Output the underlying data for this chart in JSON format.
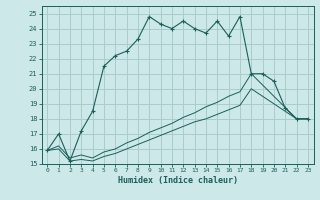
{
  "xlabel": "Humidex (Indice chaleur)",
  "background_color": "#cce8e8",
  "grid_color": "#aacccc",
  "line_color": "#1a5f5a",
  "xlim": [
    -0.5,
    23.5
  ],
  "ylim": [
    15,
    25.5
  ],
  "yticks": [
    15,
    16,
    17,
    18,
    19,
    20,
    21,
    22,
    23,
    24,
    25
  ],
  "xticks": [
    0,
    1,
    2,
    3,
    4,
    5,
    6,
    7,
    8,
    9,
    10,
    11,
    12,
    13,
    14,
    15,
    16,
    17,
    18,
    19,
    20,
    21,
    22,
    23
  ],
  "line1_x": [
    0,
    1,
    2,
    3,
    4,
    5,
    6,
    7,
    8,
    9,
    10,
    11,
    12,
    13,
    14,
    15,
    16,
    17,
    18,
    19,
    20,
    21,
    22,
    23
  ],
  "line1_y": [
    15.9,
    17.0,
    15.2,
    17.2,
    18.5,
    21.5,
    22.2,
    22.5,
    23.3,
    24.8,
    24.3,
    24.0,
    24.5,
    24.0,
    23.7,
    24.5,
    23.5,
    24.8,
    21.0,
    21.0,
    20.5,
    18.7,
    18.0,
    18.0
  ],
  "line2_x": [
    0,
    1,
    2,
    3,
    4,
    5,
    6,
    7,
    8,
    9,
    10,
    11,
    12,
    13,
    14,
    15,
    16,
    17,
    18,
    22,
    23
  ],
  "line2_y": [
    15.9,
    16.0,
    15.2,
    15.3,
    15.2,
    15.5,
    15.7,
    16.0,
    16.3,
    16.6,
    16.9,
    17.2,
    17.5,
    17.8,
    18.0,
    18.3,
    18.6,
    18.9,
    20.0,
    18.0,
    18.0
  ],
  "line3_x": [
    0,
    1,
    2,
    3,
    4,
    5,
    6,
    7,
    8,
    9,
    10,
    11,
    12,
    13,
    14,
    15,
    16,
    17,
    18,
    22,
    23
  ],
  "line3_y": [
    15.9,
    16.2,
    15.4,
    15.6,
    15.4,
    15.8,
    16.0,
    16.4,
    16.7,
    17.1,
    17.4,
    17.7,
    18.1,
    18.4,
    18.8,
    19.1,
    19.5,
    19.8,
    21.0,
    18.0,
    18.0
  ]
}
